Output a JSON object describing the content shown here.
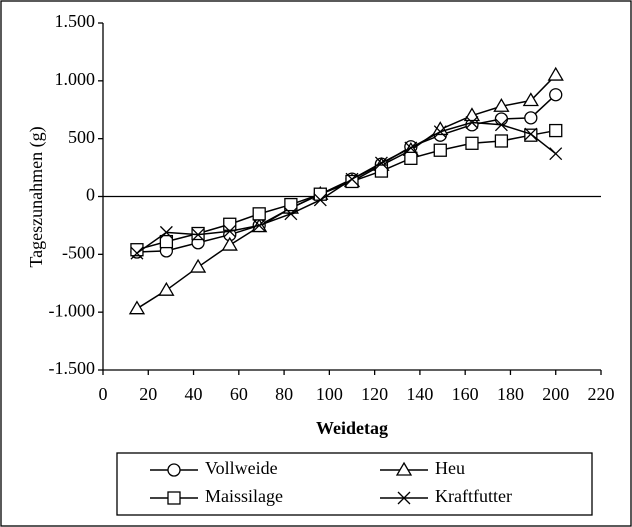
{
  "chart_data": {
    "type": "line",
    "x_label": "Weidetag",
    "y_label": "Tageszunahmen (g)",
    "x": [
      15,
      28,
      42,
      56,
      69,
      83,
      96,
      110,
      123,
      136,
      149,
      163,
      176,
      189,
      200
    ],
    "series": [
      {
        "name": "Vollweide",
        "color": "#000000",
        "marker": "circle",
        "values": [
          -480,
          -470,
          -400,
          -330,
          -250,
          -100,
          20,
          150,
          280,
          430,
          530,
          620,
          670,
          680,
          880
        ]
      },
      {
        "name": "Heu",
        "color": "#000000",
        "marker": "triangle",
        "values": [
          -970,
          -810,
          -610,
          -420,
          -260,
          -100,
          20,
          130,
          270,
          400,
          580,
          700,
          780,
          830,
          1050
        ]
      },
      {
        "name": "Maissilage",
        "color": "#000000",
        "marker": "square",
        "values": [
          -460,
          -390,
          -320,
          -240,
          -150,
          -70,
          20,
          130,
          220,
          330,
          400,
          460,
          480,
          530,
          570
        ]
      },
      {
        "name": "Kraftfutter",
        "color": "#000000",
        "marker": "x",
        "values": [
          -490,
          -310,
          -330,
          -300,
          -250,
          -150,
          -30,
          150,
          290,
          420,
          560,
          640,
          620,
          540,
          370
        ]
      }
    ],
    "xlim": [
      0,
      220
    ],
    "xticks": [
      0,
      20,
      40,
      60,
      80,
      100,
      120,
      140,
      160,
      180,
      200,
      220
    ],
    "ylim": [
      -1500,
      1500
    ],
    "yticks": [
      {
        "value": -1500,
        "label": "-1.500"
      },
      {
        "value": -1000,
        "label": "-1.000"
      },
      -500,
      0,
      500,
      {
        "value": 1000,
        "label": "1.000"
      },
      {
        "value": 1500,
        "label": "1.500"
      }
    ]
  }
}
